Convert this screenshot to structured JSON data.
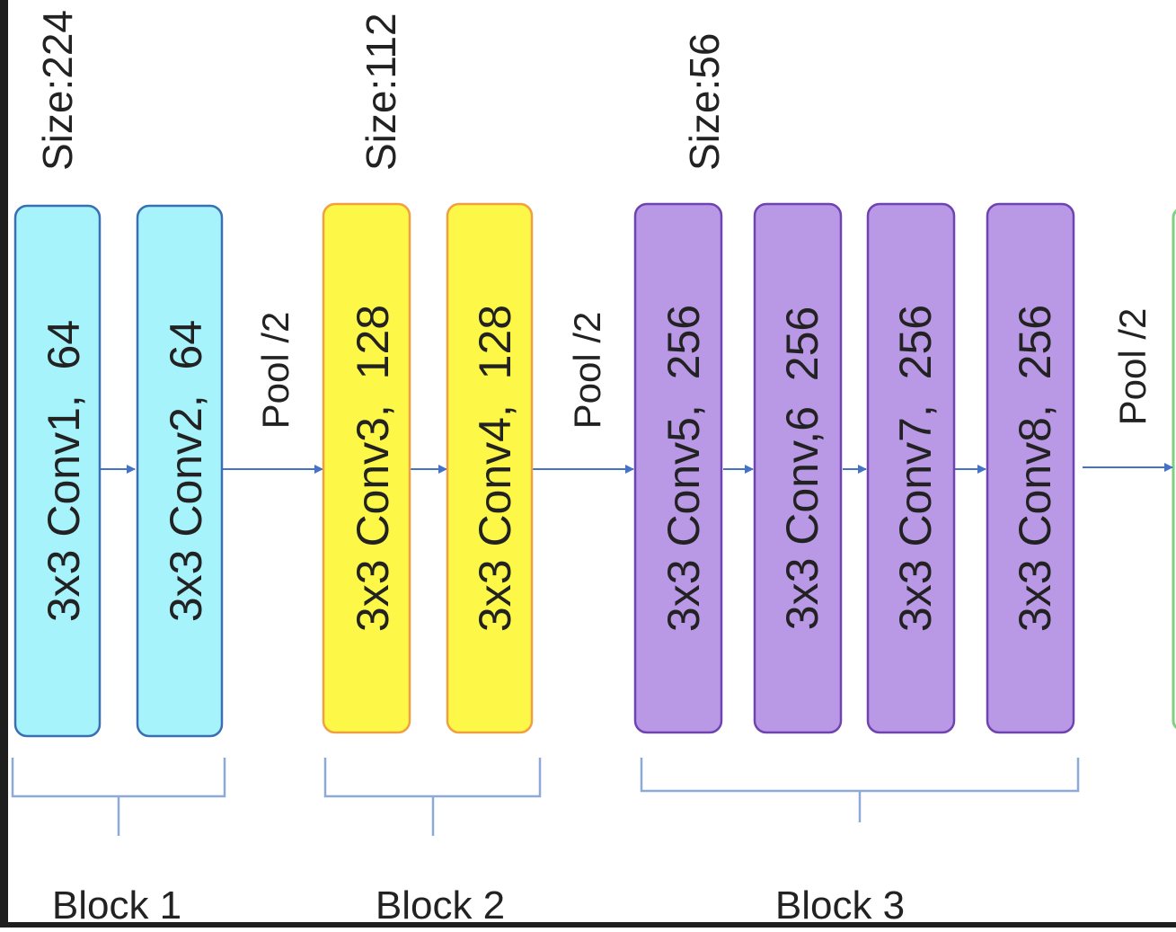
{
  "layers": [
    {
      "label": "3x3 Conv1,  64",
      "color": "cyan"
    },
    {
      "label": "3x3 Conv2,  64",
      "color": "cyan"
    },
    {
      "label": "3x3 Conv3,  128",
      "color": "yellow"
    },
    {
      "label": "3x3 Conv4,  128",
      "color": "yellow"
    },
    {
      "label": "3x3 Conv5,  256",
      "color": "purple"
    },
    {
      "label": "3x3 Conv,6  256",
      "color": "purple"
    },
    {
      "label": "3x3 Conv7,  256",
      "color": "purple"
    },
    {
      "label": "3x3 Conv8,  256",
      "color": "purple"
    }
  ],
  "sizes": [
    "Size:224",
    "Size:112",
    "Size:56"
  ],
  "pools": [
    "Pool /2",
    "Pool /2",
    "Pool /2"
  ],
  "blocks": [
    "Block 1",
    "Block 2",
    "Block 3"
  ],
  "colors": {
    "cyan_fill": "#a6f3fb",
    "cyan_stroke": "#3a6fb0",
    "yellow_fill": "#fdf847",
    "yellow_stroke": "#f0a040",
    "purple_fill": "#b998e6",
    "purple_stroke": "#6f44b0",
    "green_stroke": "#7fd07f",
    "arrow": "#4472c4",
    "brace": "#8da9d8",
    "text": "#222222"
  }
}
